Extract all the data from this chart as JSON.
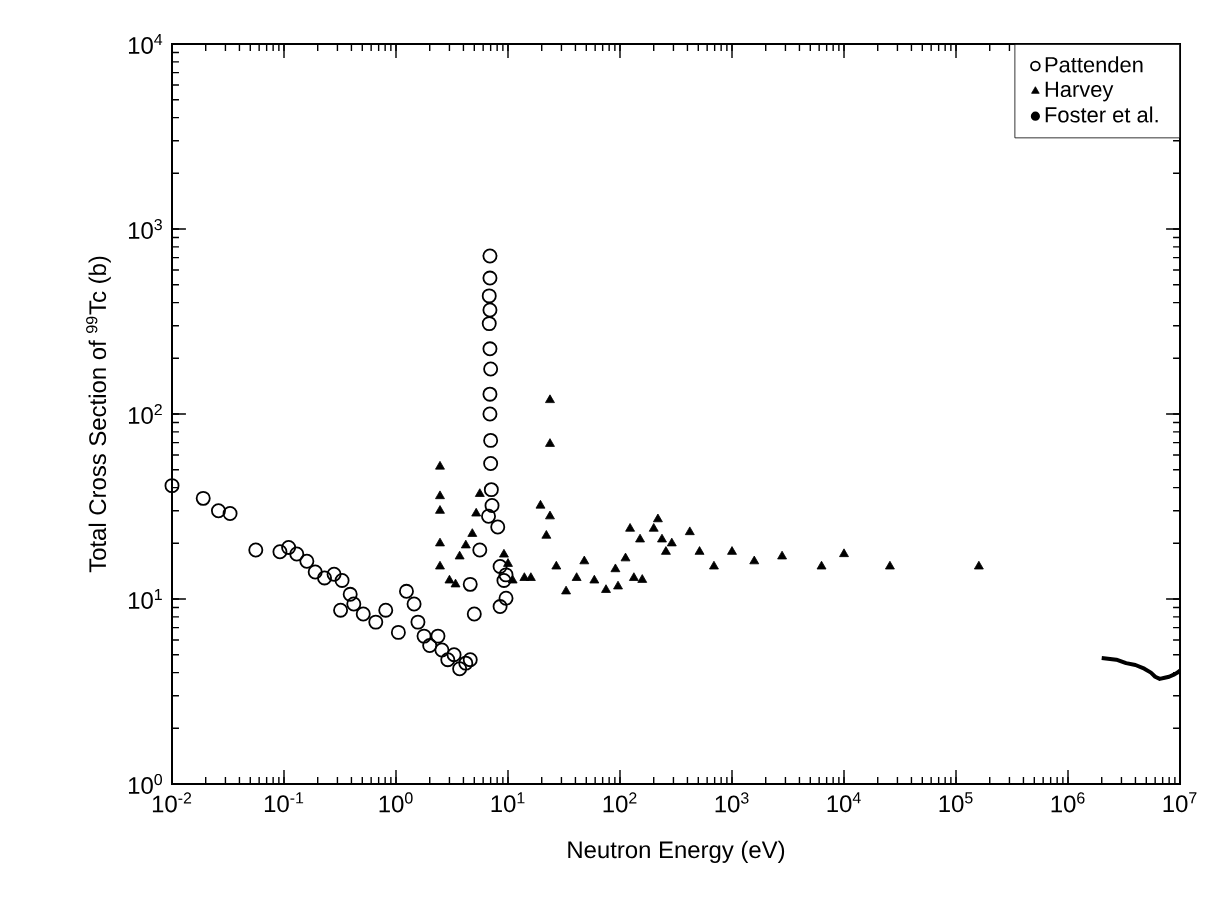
{
  "chart_data": {
    "type": "scatter",
    "xlabel": "Neutron Energy (eV)",
    "ylabel": "Total Cross Section of $^{99}$Tc (b)",
    "log": "xy",
    "legend": "top right",
    "xlim": [
      0.01,
      10000000
    ],
    "ylim": [
      1,
      10000
    ],
    "xticks": [
      {
        "value": 0.01,
        "label": "10$^{-2}$"
      },
      {
        "value": 0.1,
        "label": "10$^{-1}$"
      },
      {
        "value": 1,
        "label": "10$^{0}$"
      },
      {
        "value": 10,
        "label": "10$^{1}$"
      },
      {
        "value": 100,
        "label": "10$^{2}$"
      },
      {
        "value": 1000,
        "label": "10$^{3}$"
      },
      {
        "value": 10000,
        "label": "10$^{4}$"
      },
      {
        "value": 100000,
        "label": "10$^{5}$"
      },
      {
        "value": 1000000,
        "label": "10$^{6}$"
      },
      {
        "value": 10000000,
        "label": "10$^{7}$"
      }
    ],
    "yticks": [
      {
        "value": 1,
        "label": "10$^{0}$"
      },
      {
        "value": 10,
        "label": "10$^{1}$"
      },
      {
        "value": 100,
        "label": "10$^{2}$"
      },
      {
        "value": 1000,
        "label": "10$^{3}$"
      },
      {
        "value": 10000,
        "label": "10$^{4}$"
      }
    ],
    "series": [
      {
        "name": "Pattenden",
        "color": "#000000",
        "marker": "circle",
        "x": [
          0.01,
          0.019,
          0.026,
          0.033,
          0.056,
          0.092,
          0.11,
          0.13,
          0.16,
          0.19,
          0.23,
          0.28,
          0.33,
          0.39,
          0.32,
          0.42,
          0.51,
          0.66,
          0.81,
          1.05,
          1.24,
          1.45,
          1.57,
          1.78,
          2.0,
          2.37,
          2.57,
          2.9,
          3.3,
          3.7,
          4.2,
          4.6,
          5.0,
          4.6,
          6.9,
          6.9,
          6.8,
          6.9,
          6.8,
          6.9,
          7.0,
          6.9,
          6.9,
          7.0,
          7.0,
          7.1,
          7.2,
          6.7,
          5.6,
          8.1,
          8.5,
          9.2,
          9.6,
          8.5,
          9.6
        ],
        "values": [
          41,
          35,
          30,
          29,
          18.4,
          18,
          19,
          17.5,
          16,
          14,
          13,
          13.6,
          12.6,
          10.6,
          8.7,
          9.4,
          8.3,
          7.5,
          8.7,
          6.6,
          11,
          9.4,
          7.5,
          6.3,
          5.6,
          6.3,
          5.3,
          4.7,
          5.0,
          4.2,
          4.5,
          4.7,
          8.3,
          12,
          715,
          543,
          435,
          365,
          308,
          225,
          175,
          128,
          100,
          72,
          54,
          39,
          32,
          28,
          18.4,
          24.5,
          15,
          12.6,
          10.1,
          9.1,
          13.5
        ]
      },
      {
        "name": "Harvey",
        "color": "#000000",
        "marker": "triangle",
        "x": [
          2.47,
          2.47,
          2.47,
          2.47,
          2.47,
          3.0,
          3.4,
          3.7,
          4.2,
          4.8,
          5.2,
          5.6,
          9.2,
          10,
          11,
          14,
          16,
          23.7,
          23.7,
          19.5,
          23.7,
          22,
          27,
          33,
          41,
          48,
          59,
          75,
          96,
          112,
          133,
          151,
          200,
          237,
          290,
          123,
          218,
          257,
          420,
          513,
          690,
          1000,
          1580,
          2800,
          6300,
          10000,
          25700,
          160000,
          91,
          158
        ],
        "values": [
          52,
          36,
          30,
          20,
          15,
          12.6,
          12,
          17,
          19.5,
          22.5,
          29,
          37,
          17.4,
          15.5,
          12.6,
          13,
          13,
          119,
          69,
          32,
          28,
          22,
          15,
          11,
          13,
          16,
          12.6,
          11.2,
          11.7,
          16.6,
          13,
          21,
          24,
          21,
          20,
          24,
          27,
          18,
          23,
          18,
          15,
          18,
          16,
          17,
          15,
          17.5,
          15,
          15,
          14.5,
          12.7
        ]
      },
      {
        "name": "Foster et al.",
        "type": "line",
        "color": "#000000",
        "marker": "none",
        "line_style": "solid",
        "x": [
          2000000,
          2700000,
          3300000,
          4000000,
          4800000,
          5500000,
          6000000,
          6600000,
          7300000,
          8000000,
          8800000,
          9500000,
          10000000
        ],
        "values": [
          4.8,
          4.7,
          4.5,
          4.4,
          4.2,
          4.0,
          3.8,
          3.7,
          3.75,
          3.8,
          3.9,
          4.0,
          4.1
        ]
      }
    ]
  }
}
